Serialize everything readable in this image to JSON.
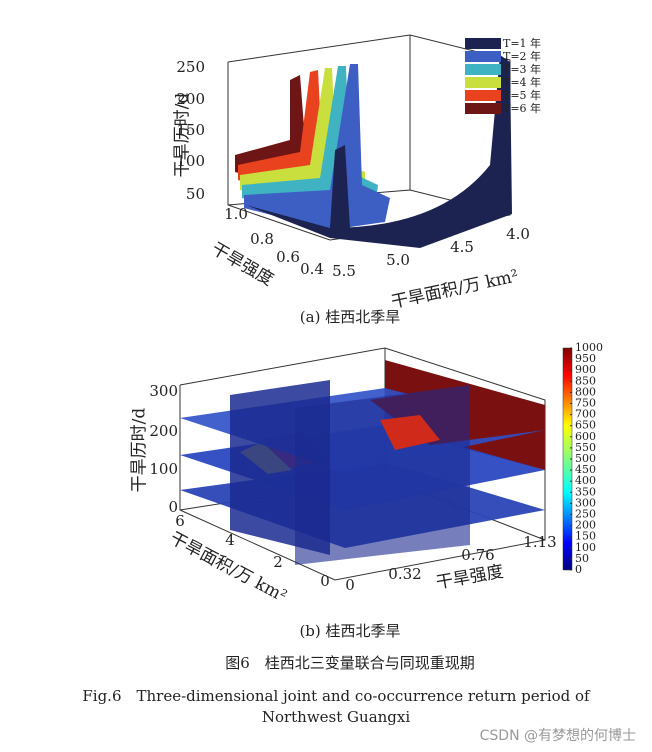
{
  "panel_a": {
    "z_label": "干旱历时/d",
    "z_ticks": [
      250,
      200,
      150,
      100,
      50
    ],
    "y_label": "干旱强度",
    "y_ticks": [
      "1.0",
      "0.8",
      "0.6",
      "0.4"
    ],
    "x_label": "干旱面积/万 km²",
    "x_ticks": [
      "5.5",
      "5.0",
      "4.5",
      "4.0"
    ],
    "legend": [
      "T=1 年",
      "T=2 年",
      "T=3 年",
      "T=4 年",
      "T=5 年",
      "T=6 年"
    ],
    "legend_colors": [
      "#1c2350",
      "#3d5fc4",
      "#3fb3c2",
      "#c9df3e",
      "#e8421f",
      "#6e1616"
    ],
    "caption": "(a) 桂西北季旱"
  },
  "panel_b": {
    "z_label": "干旱历时/d",
    "z_ticks": [
      300,
      200,
      100,
      0
    ],
    "x_label": "干旱面积/万 km²",
    "x_ticks": [
      6,
      4,
      2,
      0
    ],
    "y_label": "干旱强度",
    "y_ticks": [
      0,
      "0.32",
      "0.76",
      "1.13"
    ],
    "colorbar_ticks": [
      1000,
      950,
      900,
      850,
      800,
      750,
      700,
      650,
      600,
      550,
      500,
      450,
      400,
      350,
      300,
      250,
      200,
      150,
      100,
      50,
      0
    ],
    "caption": "(b) 桂西北季旱"
  },
  "figure_title": "图6　桂西北三变量联合与同现重现期",
  "caption_en": [
    "Fig.6　Three-dimensional joint and co-occurrence return period of",
    "Northwest Guangxi"
  ],
  "watermark": "CSDN @有梦想的何博士"
}
